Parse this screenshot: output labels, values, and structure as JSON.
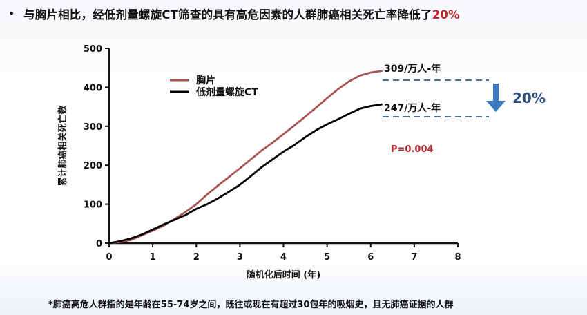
{
  "header": {
    "bullet": "•",
    "text": "与胸片相比，经低剂量螺旋CT筛查的具有高危因素的人群肺癌相关死亡率降低了",
    "highlight": "20%"
  },
  "footnote": "*肺癌高危人群指的是年龄在55-74岁之间，既往或现在有超过30包年的吸烟史，且无肺癌证据的人群",
  "chart_data": {
    "type": "line",
    "xlabel": "随机化后时间 (年)",
    "ylabel": "累计肺癌相关死亡数",
    "xlim": [
      0,
      8
    ],
    "ylim": [
      0,
      500
    ],
    "xticks": [
      "0",
      "1",
      "2",
      "3",
      "4",
      "5",
      "6",
      "7",
      "8"
    ],
    "yticks": [
      "0",
      "100",
      "200",
      "300",
      "400",
      "500"
    ],
    "grid": false,
    "legend_position": "upper-left",
    "series": [
      {
        "name": "胸片",
        "color": "#a85452",
        "x": [
          0,
          0.25,
          0.5,
          0.75,
          1.0,
          1.25,
          1.5,
          1.75,
          2.0,
          2.25,
          2.5,
          2.75,
          3.0,
          3.25,
          3.5,
          3.75,
          4.0,
          4.25,
          4.5,
          4.75,
          5.0,
          5.25,
          5.5,
          5.75,
          6.0,
          6.25
        ],
        "values": [
          0,
          3,
          8,
          20,
          32,
          45,
          62,
          80,
          100,
          125,
          148,
          170,
          192,
          215,
          238,
          258,
          280,
          302,
          325,
          348,
          372,
          395,
          415,
          430,
          438,
          442
        ]
      },
      {
        "name": "低剂量螺旋CT",
        "color": "#000000",
        "x": [
          0,
          0.25,
          0.5,
          0.75,
          1.0,
          1.25,
          1.5,
          1.75,
          2.0,
          2.25,
          2.5,
          2.75,
          3.0,
          3.25,
          3.5,
          3.75,
          4.0,
          4.25,
          4.5,
          4.75,
          5.0,
          5.25,
          5.5,
          5.75,
          6.0,
          6.25
        ],
        "values": [
          0,
          5,
          12,
          22,
          35,
          48,
          60,
          72,
          88,
          100,
          115,
          132,
          150,
          172,
          195,
          215,
          235,
          252,
          272,
          290,
          305,
          318,
          332,
          345,
          352,
          356
        ]
      }
    ],
    "annotations": {
      "cxr_rate": "309/万人-年",
      "ct_rate": "247/万人-年",
      "reduction": "20%",
      "p_value": "P=0.004",
      "dash_color": "#4a6f9a",
      "arrow_color": "#3a78bf"
    }
  }
}
